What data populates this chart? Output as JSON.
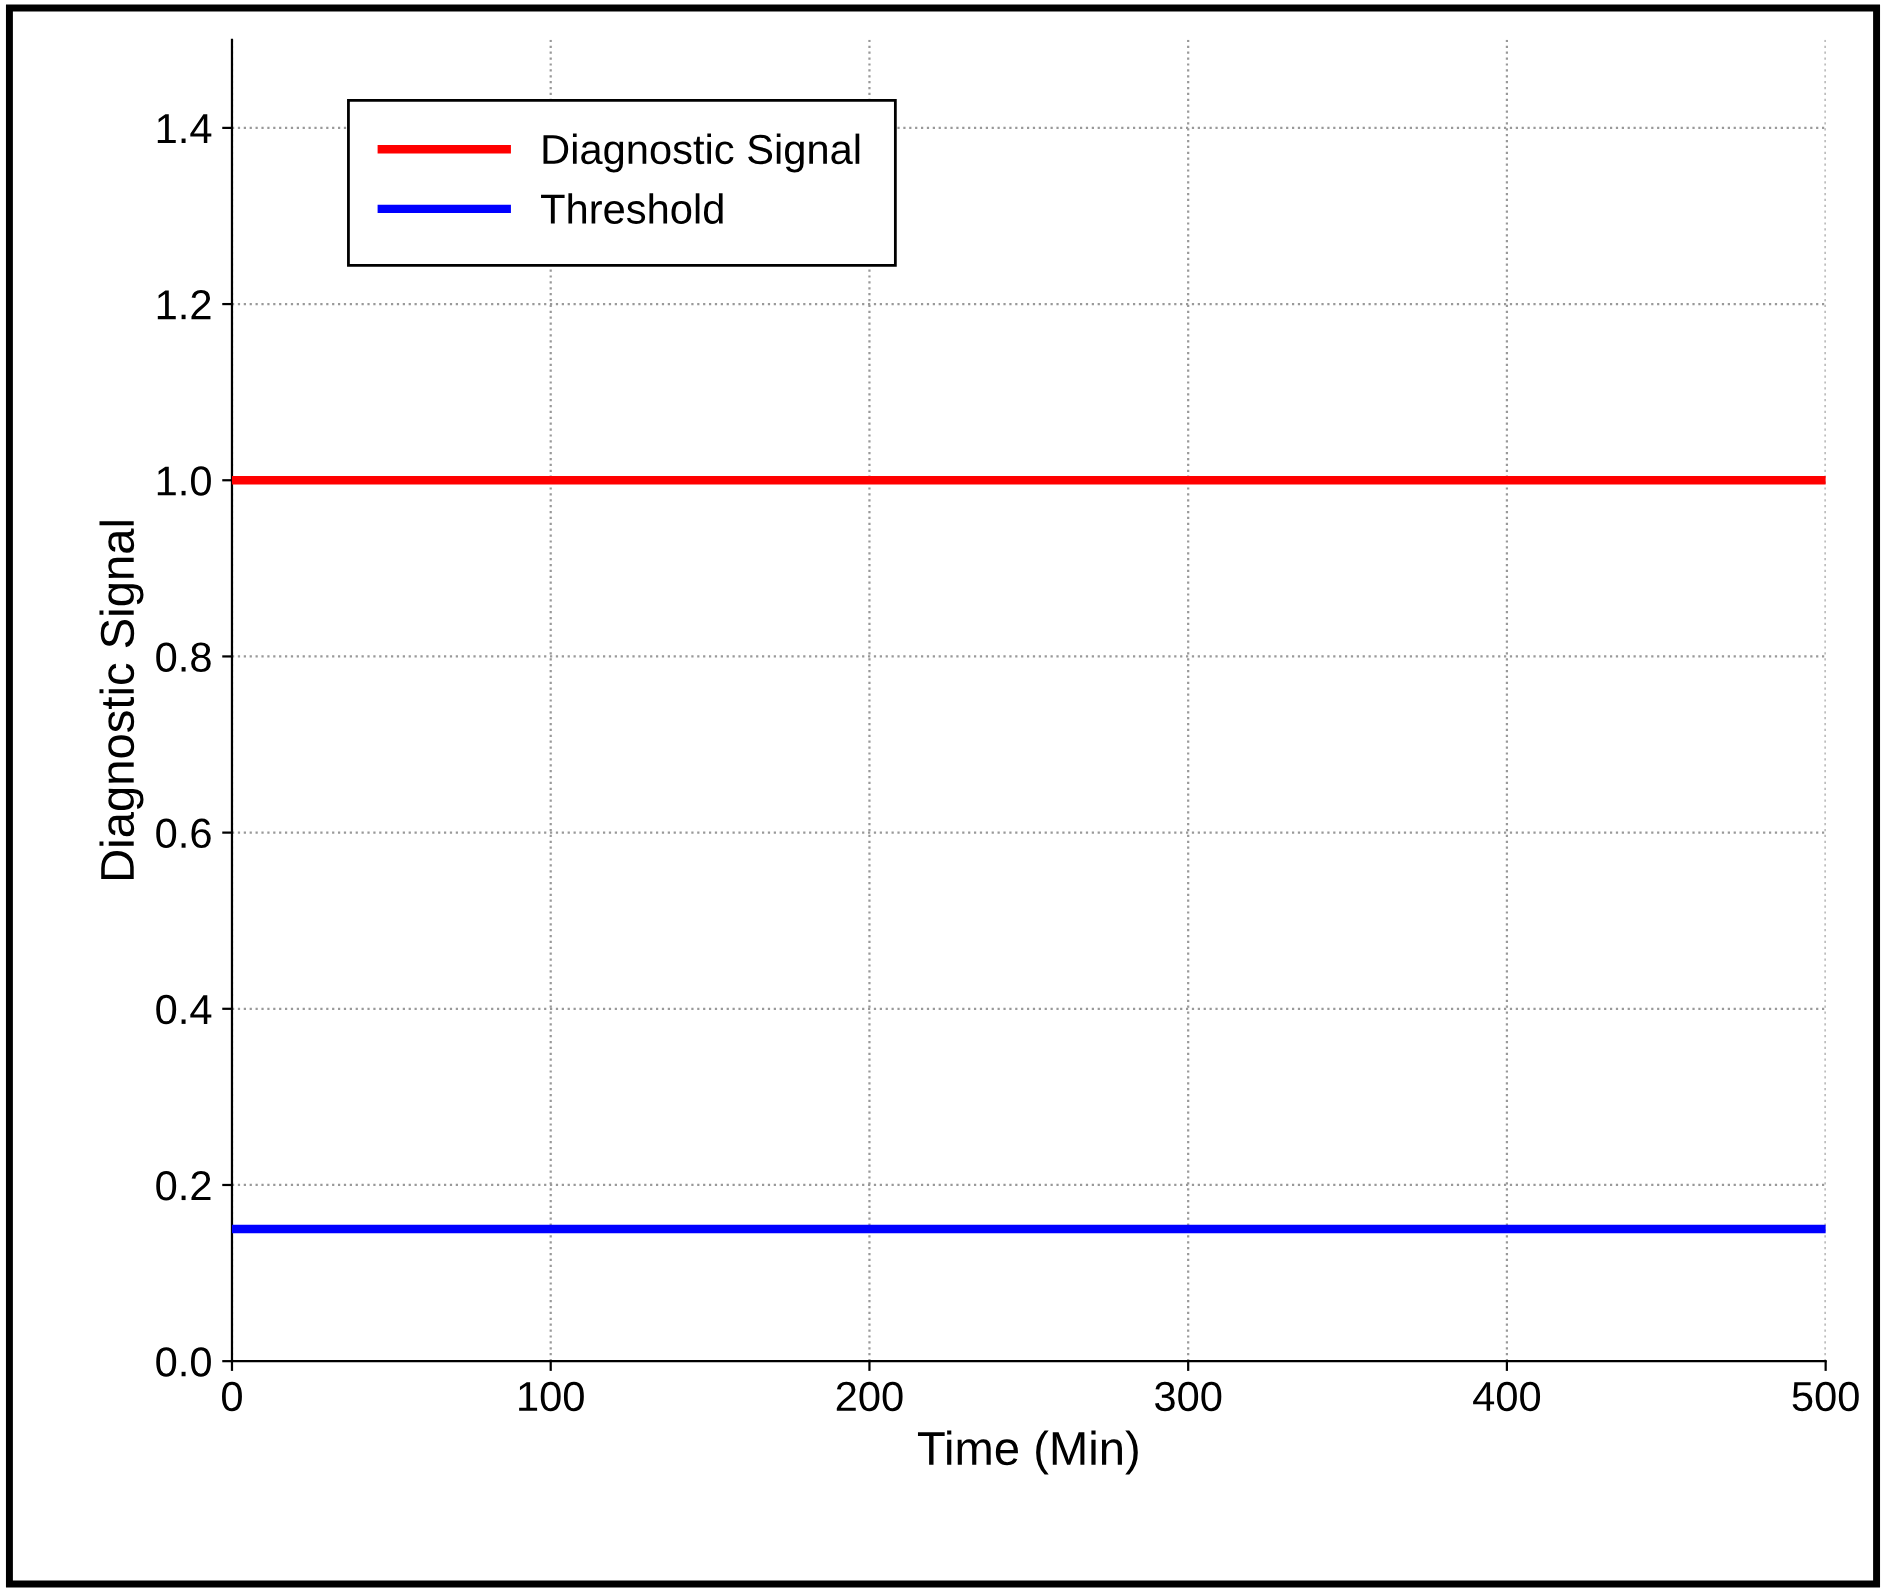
{
  "chart_data": {
    "type": "line",
    "xlabel": "Time (Min)",
    "ylabel": "Diagnostic Signal",
    "x": [
      0,
      500
    ],
    "series": [
      {
        "name": "Diagnostic Signal",
        "color": "#ff0000",
        "values": [
          1.0,
          1.0
        ]
      },
      {
        "name": "Threshold",
        "color": "#0000ff",
        "values": [
          0.15,
          0.15
        ]
      }
    ],
    "xlim": [
      0,
      500
    ],
    "xticks": [
      0,
      100,
      200,
      300,
      400,
      500
    ],
    "ylim": [
      0,
      1.5
    ],
    "yticks": [
      {
        "value": 0,
        "label": "0.0"
      },
      0.2,
      0.4,
      0.6,
      0.8,
      {
        "value": 1,
        "label": "1.0"
      },
      1.2,
      1.4
    ],
    "grid": true,
    "legend": "top left",
    "line_style": "solid",
    "marker": "none"
  }
}
